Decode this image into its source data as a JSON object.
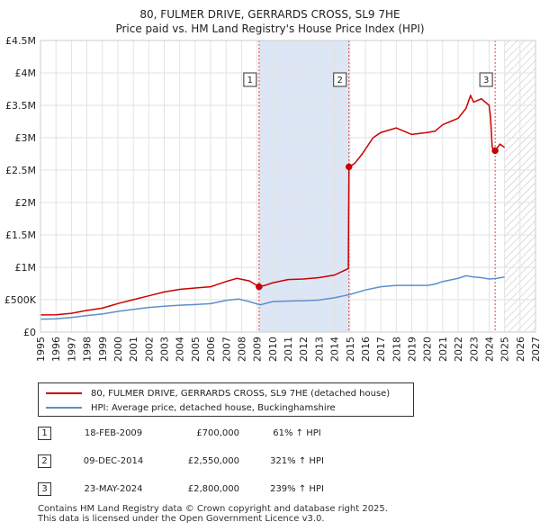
{
  "title_line1": "80, FULMER DRIVE, GERRARDS CROSS, SL9 7HE",
  "title_line2": "Price paid vs. HM Land Registry's House Price Index (HPI)",
  "chart_data": {
    "type": "line",
    "xlim": [
      1995,
      2027
    ],
    "ylim": [
      0,
      4500000
    ],
    "x_ticks": [
      1995,
      1996,
      1997,
      1998,
      1999,
      2000,
      2001,
      2002,
      2003,
      2004,
      2005,
      2006,
      2007,
      2008,
      2009,
      2010,
      2011,
      2012,
      2013,
      2014,
      2015,
      2016,
      2017,
      2018,
      2019,
      2020,
      2021,
      2022,
      2023,
      2024,
      2025,
      2026,
      2027
    ],
    "y_ticks": [
      {
        "value": 0,
        "label": "£0"
      },
      {
        "value": 500000,
        "label": "£500K"
      },
      {
        "value": 1000000,
        "label": "£1M"
      },
      {
        "value": 1500000,
        "label": "£1.5M"
      },
      {
        "value": 2000000,
        "label": "£2M"
      },
      {
        "value": 2500000,
        "label": "£2.5M"
      },
      {
        "value": 3000000,
        "label": "£3M"
      },
      {
        "value": 3500000,
        "label": "£3.5M"
      },
      {
        "value": 4000000,
        "label": "£4M"
      },
      {
        "value": 4500000,
        "label": "£4.5M"
      }
    ],
    "grid": true,
    "future_hatch_from": 2025.0,
    "shaded_period": [
      2009.13,
      2014.94
    ],
    "series": [
      {
        "name": "80, FULMER DRIVE, GERRARDS CROSS, SL9 7HE (detached house)",
        "color": "#cc0000",
        "points": [
          [
            1995.0,
            265000
          ],
          [
            1996.0,
            268000
          ],
          [
            1997.0,
            290000
          ],
          [
            1998.0,
            335000
          ],
          [
            1999.0,
            370000
          ],
          [
            2000.0,
            440000
          ],
          [
            2001.0,
            500000
          ],
          [
            2002.0,
            560000
          ],
          [
            2003.0,
            620000
          ],
          [
            2004.0,
            660000
          ],
          [
            2005.0,
            680000
          ],
          [
            2006.0,
            700000
          ],
          [
            2007.0,
            780000
          ],
          [
            2007.7,
            830000
          ],
          [
            2008.5,
            790000
          ],
          [
            2009.13,
            700000
          ],
          [
            2009.5,
            720000
          ],
          [
            2010.0,
            760000
          ],
          [
            2011.0,
            810000
          ],
          [
            2012.0,
            820000
          ],
          [
            2013.0,
            840000
          ],
          [
            2014.0,
            880000
          ],
          [
            2014.9,
            980000
          ],
          [
            2014.94,
            2550000
          ],
          [
            2015.3,
            2600000
          ],
          [
            2015.8,
            2750000
          ],
          [
            2016.5,
            3000000
          ],
          [
            2017.0,
            3080000
          ],
          [
            2018.0,
            3150000
          ],
          [
            2018.5,
            3100000
          ],
          [
            2019.0,
            3050000
          ],
          [
            2020.0,
            3080000
          ],
          [
            2020.5,
            3100000
          ],
          [
            2021.0,
            3200000
          ],
          [
            2021.5,
            3250000
          ],
          [
            2022.0,
            3300000
          ],
          [
            2022.5,
            3450000
          ],
          [
            2022.8,
            3650000
          ],
          [
            2023.0,
            3550000
          ],
          [
            2023.5,
            3600000
          ],
          [
            2024.0,
            3500000
          ],
          [
            2024.1,
            3300000
          ],
          [
            2024.2,
            2850000
          ],
          [
            2024.39,
            2800000
          ],
          [
            2024.7,
            2900000
          ],
          [
            2025.0,
            2850000
          ]
        ]
      },
      {
        "name": "HPI: Average price, detached house, Buckinghamshire",
        "color": "#5b8fcc",
        "points": [
          [
            1995.0,
            200000
          ],
          [
            1996.0,
            205000
          ],
          [
            1997.0,
            225000
          ],
          [
            1998.0,
            255000
          ],
          [
            1999.0,
            280000
          ],
          [
            2000.0,
            320000
          ],
          [
            2001.0,
            350000
          ],
          [
            2002.0,
            380000
          ],
          [
            2003.0,
            400000
          ],
          [
            2004.0,
            415000
          ],
          [
            2005.0,
            425000
          ],
          [
            2006.0,
            440000
          ],
          [
            2007.0,
            490000
          ],
          [
            2007.8,
            510000
          ],
          [
            2008.5,
            470000
          ],
          [
            2009.2,
            420000
          ],
          [
            2010.0,
            470000
          ],
          [
            2011.0,
            480000
          ],
          [
            2012.0,
            485000
          ],
          [
            2013.0,
            495000
          ],
          [
            2014.0,
            530000
          ],
          [
            2015.0,
            580000
          ],
          [
            2016.0,
            650000
          ],
          [
            2017.0,
            700000
          ],
          [
            2018.0,
            720000
          ],
          [
            2019.0,
            720000
          ],
          [
            2020.0,
            720000
          ],
          [
            2020.5,
            740000
          ],
          [
            2021.0,
            780000
          ],
          [
            2022.0,
            830000
          ],
          [
            2022.5,
            870000
          ],
          [
            2023.0,
            850000
          ],
          [
            2023.5,
            840000
          ],
          [
            2024.0,
            820000
          ],
          [
            2024.5,
            830000
          ],
          [
            2025.0,
            850000
          ]
        ]
      }
    ],
    "sales": [
      {
        "num": "1",
        "x": 2009.13,
        "value": 700000
      },
      {
        "num": "2",
        "x": 2014.94,
        "value": 2550000
      },
      {
        "num": "3",
        "x": 2024.39,
        "value": 2800000
      }
    ]
  },
  "legend": {
    "property": "80, FULMER DRIVE, GERRARDS CROSS, SL9 7HE (detached house)",
    "hpi": "HPI: Average price, detached house, Buckinghamshire"
  },
  "transactions": [
    {
      "num": "1",
      "date": "18-FEB-2009",
      "price": "£700,000",
      "hpi": "61% ↑ HPI"
    },
    {
      "num": "2",
      "date": "09-DEC-2014",
      "price": "£2,550,000",
      "hpi": "321% ↑ HPI"
    },
    {
      "num": "3",
      "date": "23-MAY-2024",
      "price": "£2,800,000",
      "hpi": "239% ↑ HPI"
    }
  ],
  "footer": {
    "line1": "Contains HM Land Registry data © Crown copyright and database right 2025.",
    "line2": "This data is licensed under the Open Government Licence v3.0."
  },
  "colors": {
    "property": "#cc0000",
    "hpi": "#5b8fcc",
    "shade": "#dde6f5"
  }
}
